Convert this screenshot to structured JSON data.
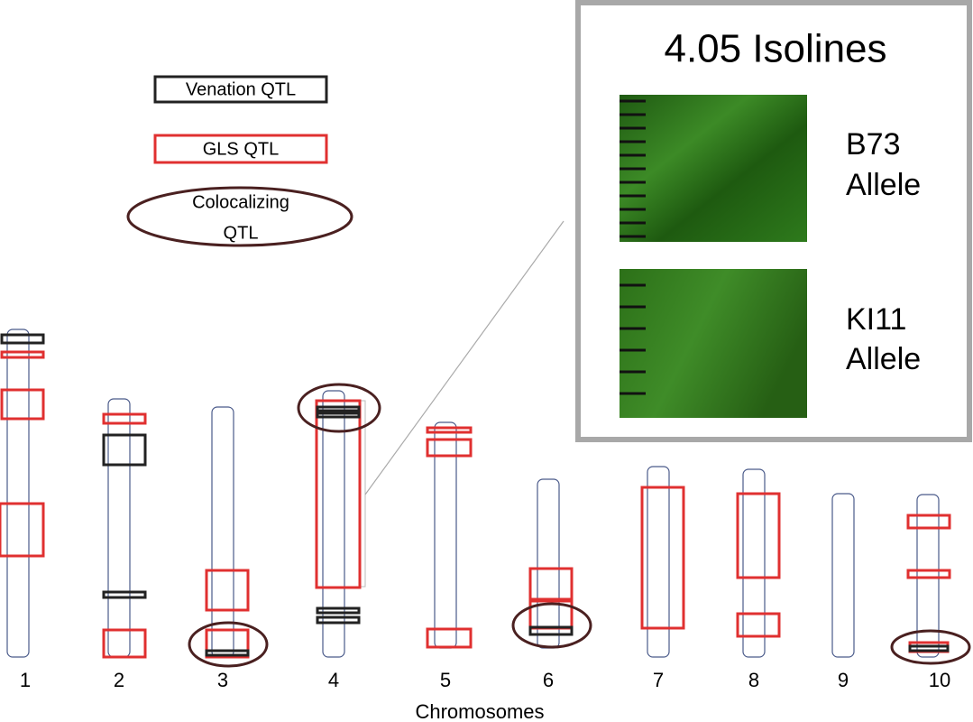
{
  "legend": {
    "venation": "Venation QTL",
    "gls": "GLS QTL",
    "colocalizing": [
      "Colocalizing",
      "QTL"
    ]
  },
  "chromosomes": [
    "1",
    "2",
    "3",
    "4",
    "5",
    "6",
    "7",
    "8",
    "9",
    "10"
  ],
  "axis_label": "Chromosomes",
  "inset": {
    "title": "4.05 Isolines",
    "panels": [
      [
        "B73",
        "Allele"
      ],
      [
        "KI11",
        "Allele"
      ]
    ]
  }
}
